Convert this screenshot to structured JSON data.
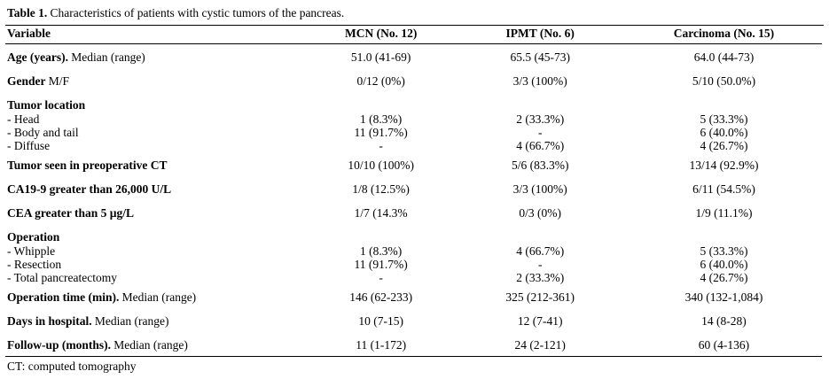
{
  "title": {
    "label_bold": "Table 1.",
    "label_rest": "Characteristics of patients with cystic tumors of the pancreas."
  },
  "footnote": "CT: computed tomography",
  "table": {
    "columns": [
      "Variable",
      "MCN (No. 12)",
      "IPMT (No. 6)",
      "Carcinoma (No. 15)"
    ],
    "rows": [
      {
        "type": "main",
        "label_bold": "Age (years).",
        "label_rest": "Median (range)",
        "values": [
          "51.0 (41-69)",
          "65.5 (45-73)",
          "64.0 (44-73)"
        ]
      },
      {
        "type": "main",
        "label_bold": "Gender",
        "label_rest": "M/F",
        "values": [
          "0/12 (0%)",
          "3/3 (100%)",
          "5/10 (50.0%)"
        ]
      },
      {
        "type": "group",
        "label_bold": "Tumor location",
        "values": [
          "",
          "",
          ""
        ]
      },
      {
        "type": "sub",
        "label": "- Head",
        "values": [
          "1 (8.3%)",
          "2 (33.3%)",
          "5 (33.3%)"
        ]
      },
      {
        "type": "sub",
        "label": "- Body and tail",
        "values": [
          "11 (91.7%)",
          "-",
          "6 (40.0%)"
        ]
      },
      {
        "type": "sub",
        "label": "- Diffuse",
        "values": [
          "-",
          "4 (66.7%)",
          "4 (26.7%)"
        ]
      },
      {
        "type": "main",
        "label_bold": "Tumor seen in preoperative CT",
        "values": [
          "10/10 (100%)",
          "5/6 (83.3%)",
          "13/14 (92.9%)"
        ]
      },
      {
        "type": "main",
        "label_bold": "CA19-9 greater than 26,000 U/L",
        "values": [
          "1/8 (12.5%)",
          "3/3 (100%)",
          "6/11 (54.5%)"
        ]
      },
      {
        "type": "main",
        "label_bold": "CEA greater than 5 µg/L",
        "values": [
          "1/7 (14.3%",
          "0/3 (0%)",
          "1/9 (11.1%)"
        ]
      },
      {
        "type": "group",
        "label_bold": "Operation",
        "values": [
          "",
          "",
          ""
        ]
      },
      {
        "type": "sub",
        "label": "- Whipple",
        "values": [
          "1 (8.3%)",
          "4 (66.7%)",
          "5 (33.3%)"
        ]
      },
      {
        "type": "sub",
        "label": "- Resection",
        "values": [
          "11 (91.7%)",
          "-",
          "6 (40.0%)"
        ]
      },
      {
        "type": "sub",
        "label": "- Total pancreatectomy",
        "values": [
          "-",
          "2 (33.3%)",
          "4 (26.7%)"
        ]
      },
      {
        "type": "main",
        "label_bold": "Operation time (min).",
        "label_rest": "Median (range)",
        "values": [
          "146 (62-233)",
          "325 (212-361)",
          "340 (132-1,084)"
        ]
      },
      {
        "type": "main",
        "label_bold": "Days in hospital.",
        "label_rest": "Median (range)",
        "values": [
          "10 (7-15)",
          "12 (7-41)",
          "14 (8-28)"
        ]
      },
      {
        "type": "main",
        "label_bold": "Follow-up (months).",
        "label_rest": "Median (range)",
        "values": [
          "11 (1-172)",
          "24 (2-121)",
          "60 (4-136)"
        ]
      }
    ]
  },
  "colors": {
    "text": "#000000",
    "background": "#ffffff",
    "rule": "#000000"
  }
}
